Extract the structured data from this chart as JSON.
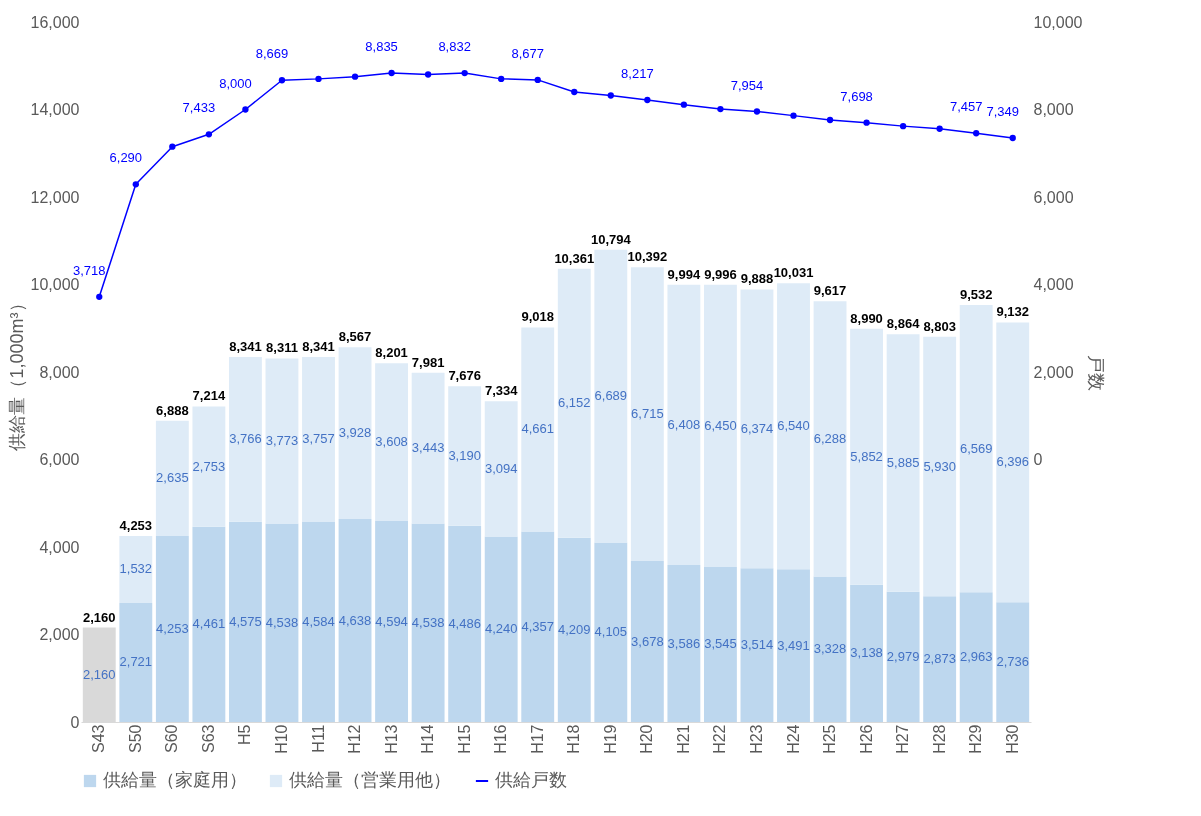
{
  "chart_data": {
    "type": "bar",
    "stacked": true,
    "categories": [
      "S43",
      "S50",
      "S60",
      "S63",
      "H5",
      "H10",
      "H11",
      "H12",
      "H13",
      "H14",
      "H15",
      "H16",
      "H17",
      "H18",
      "H19",
      "H20",
      "H21",
      "H22",
      "H23",
      "H24",
      "H25",
      "H26",
      "H27",
      "H28",
      "H29",
      "H30"
    ],
    "ylabel": "供給量（1,000m³）",
    "y2label": "戸数",
    "ylim": [
      0,
      16000
    ],
    "yticks": [
      0,
      {
        "value": 2000,
        "label": "2,000"
      },
      {
        "value": 4000,
        "label": "4,000"
      },
      {
        "value": 6000,
        "label": "6,000"
      },
      {
        "value": 8000,
        "label": "8,000"
      },
      {
        "value": 10000,
        "label": "10,000"
      },
      {
        "value": 12000,
        "label": "12,000"
      },
      {
        "value": 14000,
        "label": "14,000"
      },
      {
        "value": 16000,
        "label": "16,000"
      }
    ],
    "y2lim": [
      -6000,
      10000
    ],
    "y2ticks": [
      0,
      {
        "value": 2000,
        "label": "2,000"
      },
      {
        "value": 4000,
        "label": "4,000"
      },
      {
        "value": 6000,
        "label": "6,000"
      },
      {
        "value": 8000,
        "label": "8,000"
      },
      {
        "value": 10000,
        "label": "10,000"
      }
    ],
    "series": [
      {
        "name": "供給量（家庭用）",
        "color": "#bdd7ee",
        "colors": [
          "#d9d9d9",
          "#bdd7ee",
          "#bdd7ee",
          "#bdd7ee",
          "#bdd7ee",
          "#bdd7ee",
          "#bdd7ee",
          "#bdd7ee",
          "#bdd7ee",
          "#bdd7ee",
          "#bdd7ee",
          "#bdd7ee",
          "#bdd7ee",
          "#bdd7ee",
          "#bdd7ee",
          "#bdd7ee",
          "#bdd7ee",
          "#bdd7ee",
          "#bdd7ee",
          "#bdd7ee",
          "#bdd7ee",
          "#bdd7ee",
          "#bdd7ee",
          "#bdd7ee",
          "#bdd7ee",
          "#bdd7ee"
        ],
        "values": [
          2160,
          2721,
          4253,
          4461,
          4575,
          4538,
          4584,
          4638,
          4594,
          4538,
          4486,
          4240,
          4357,
          4209,
          4105,
          3678,
          3586,
          3545,
          3514,
          3491,
          3328,
          3138,
          2979,
          2873,
          2963,
          2736
        ],
        "value_labels": [
          "2,160",
          "2,721",
          "4,253",
          "4,461",
          "4,575",
          "4,538",
          "4,584",
          "4,638",
          "4,594",
          "4,538",
          "4,486",
          "4,240",
          "4,357",
          "4,209",
          "4,105",
          "3,678",
          "3,586",
          "3,545",
          "3,514",
          "3,491",
          "3,328",
          "3,138",
          "2,979",
          "2,873",
          "2,963",
          "2,736"
        ]
      },
      {
        "name": "供給量（営業用他）",
        "color": "#deebf7",
        "values": [
          null,
          1532,
          2635,
          2753,
          3766,
          3773,
          3757,
          3928,
          3608,
          3443,
          3190,
          3094,
          4661,
          6152,
          6689,
          6715,
          6408,
          6450,
          6374,
          6540,
          6288,
          5852,
          5885,
          5930,
          6569,
          6396
        ],
        "value_labels": [
          null,
          "1,532",
          "2,635",
          "2,753",
          "3,766",
          "3,773",
          "3,757",
          "3,928",
          "3,608",
          "3,443",
          "3,190",
          "3,094",
          "4,661",
          "6,152",
          "6,689",
          "6,715",
          "6,408",
          "6,450",
          "6,374",
          "6,540",
          "6,288",
          "5,852",
          "5,885",
          "5,930",
          "6,569",
          "6,396"
        ]
      },
      {
        "name": "供給戸数",
        "type": "line",
        "axis": "y2",
        "color": "#0000ff",
        "marker": "circle",
        "values": [
          3718,
          6290,
          7150,
          7433,
          8000,
          8669,
          8700,
          8750,
          8835,
          8800,
          8832,
          8700,
          8677,
          8400,
          8320,
          8217,
          8110,
          8010,
          7954,
          7860,
          7760,
          7698,
          7620,
          7560,
          7457,
          7349
        ],
        "value_labels": [
          "3,718",
          "6,290",
          null,
          "7,433",
          "8,000",
          "8,669",
          null,
          null,
          "8,835",
          null,
          "8,832",
          null,
          "8,677",
          null,
          null,
          "8,217",
          null,
          null,
          "7,954",
          null,
          null,
          "7,698",
          null,
          null,
          "7,457",
          "7,349"
        ]
      }
    ],
    "totals": [
      "2,160",
      "4,253",
      "6,888",
      "7,214",
      "8,341",
      "8,311",
      "8,341",
      "8,567",
      "8,201",
      "7,981",
      "7,676",
      "7,334",
      "9,018",
      "10,361",
      "10,794",
      "10,392",
      "9,994",
      "9,996",
      "9,888",
      "10,031",
      "9,617",
      "8,990",
      "8,864",
      "8,803",
      "9,532",
      "9,132"
    ],
    "legend": "bottom",
    "grid": false
  }
}
